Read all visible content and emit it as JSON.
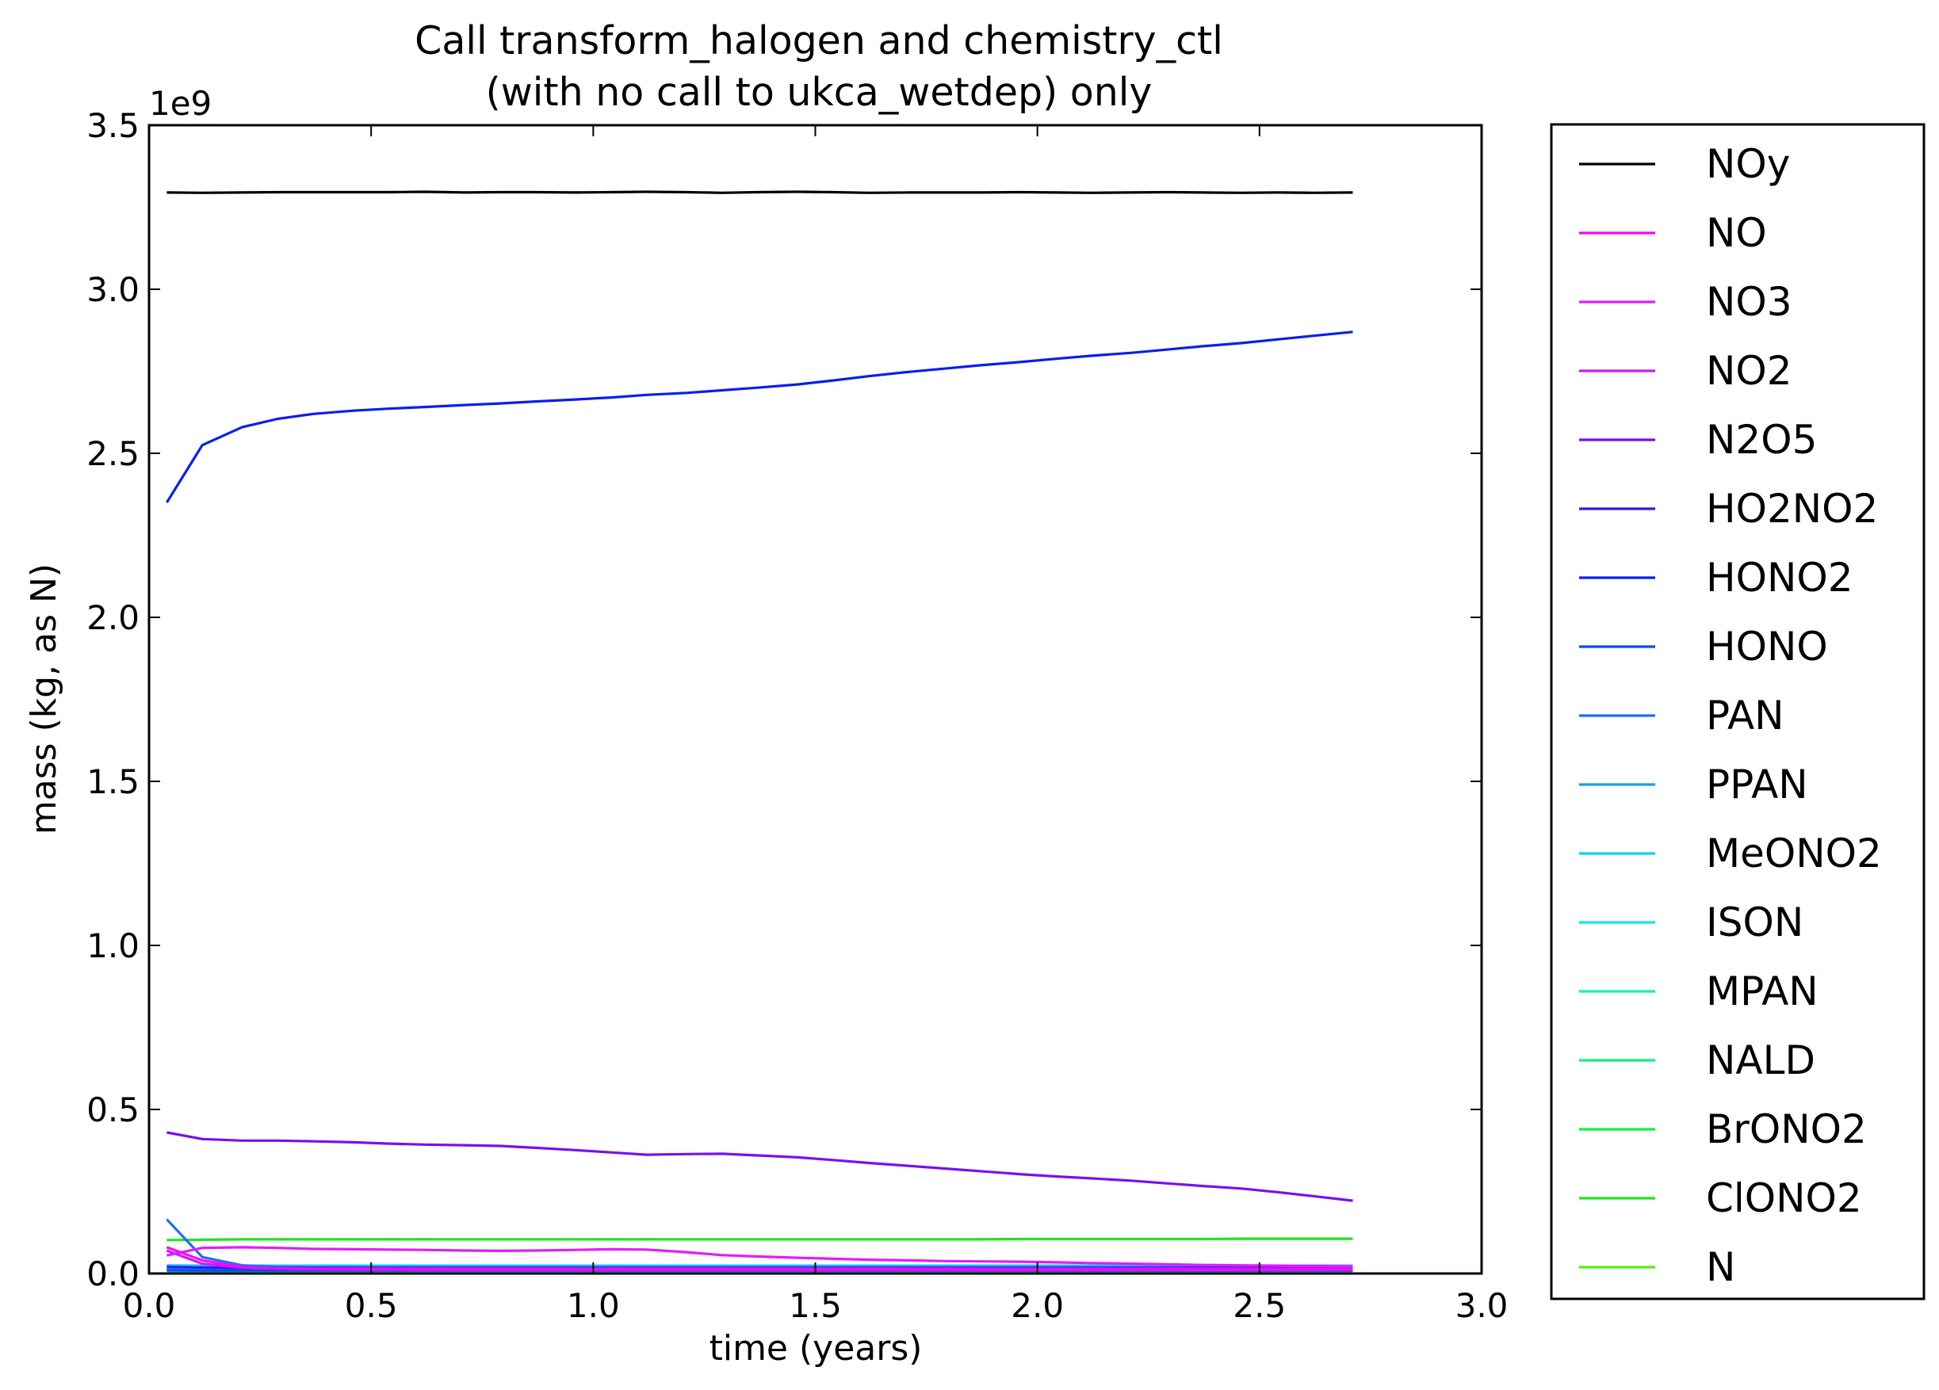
{
  "chart_data": {
    "type": "line",
    "title": "Call transform_halogen and chemistry_ctl\n(with no call to ukca_wetdep) only",
    "title_lines": [
      "Call transform_halogen and chemistry_ctl",
      "(with no call to ukca_wetdep) only"
    ],
    "xlabel": "time (years)",
    "ylabel": "mass (kg, as N)",
    "y_offset_label": "1e9",
    "xlim": [
      0.0,
      3.0
    ],
    "ylim": [
      0.0,
      3.5
    ],
    "x_ticks": [
      0.0,
      0.5,
      1.0,
      1.5,
      2.0,
      2.5,
      3.0
    ],
    "x_tick_labels": [
      "0.0",
      "0.5",
      "1.0",
      "1.5",
      "2.0",
      "2.5",
      "3.0"
    ],
    "y_ticks": [
      0.0,
      0.5,
      1.0,
      1.5,
      2.0,
      2.5,
      3.0,
      3.5
    ],
    "y_tick_labels": [
      "0.0",
      "0.5",
      "1.0",
      "1.5",
      "2.0",
      "2.5",
      "3.0",
      "3.5"
    ],
    "grid": false,
    "legend_position": "outside-right",
    "x": [
      0.04,
      0.12,
      0.21,
      0.29,
      0.37,
      0.46,
      0.54,
      0.62,
      0.71,
      0.79,
      0.87,
      0.96,
      1.04,
      1.12,
      1.21,
      1.29,
      1.37,
      1.46,
      1.54,
      1.62,
      1.71,
      1.79,
      1.87,
      1.96,
      2.04,
      2.12,
      2.21,
      2.29,
      2.37,
      2.46,
      2.54,
      2.62,
      2.71
    ],
    "series": [
      {
        "name": "NOy",
        "color": "#000000",
        "values": [
          3.295,
          3.294,
          3.295,
          3.296,
          3.296,
          3.296,
          3.296,
          3.297,
          3.295,
          3.296,
          3.296,
          3.295,
          3.296,
          3.297,
          3.296,
          3.294,
          3.296,
          3.297,
          3.296,
          3.294,
          3.295,
          3.295,
          3.295,
          3.296,
          3.295,
          3.294,
          3.295,
          3.296,
          3.295,
          3.294,
          3.295,
          3.294,
          3.295
        ]
      },
      {
        "name": "NO",
        "color": "#ff00ff",
        "values": [
          0.08,
          0.04,
          0.02,
          0.015,
          0.013,
          0.012,
          0.012,
          0.011,
          0.011,
          0.011,
          0.011,
          0.011,
          0.011,
          0.011,
          0.011,
          0.011,
          0.011,
          0.011,
          0.011,
          0.011,
          0.011,
          0.011,
          0.011,
          0.011,
          0.011,
          0.011,
          0.011,
          0.011,
          0.011,
          0.011,
          0.011,
          0.011,
          0.011
        ]
      },
      {
        "name": "NO3",
        "color": "#e31cff",
        "values": [
          0.055,
          0.078,
          0.08,
          0.078,
          0.075,
          0.074,
          0.073,
          0.072,
          0.07,
          0.069,
          0.07,
          0.072,
          0.074,
          0.073,
          0.065,
          0.056,
          0.052,
          0.048,
          0.045,
          0.042,
          0.04,
          0.038,
          0.037,
          0.036,
          0.034,
          0.032,
          0.03,
          0.028,
          0.026,
          0.025,
          0.024,
          0.023,
          0.022
        ]
      },
      {
        "name": "NO2",
        "color": "#c01ff0",
        "values": [
          0.07,
          0.03,
          0.018,
          0.016,
          0.015,
          0.015,
          0.015,
          0.015,
          0.015,
          0.015,
          0.015,
          0.015,
          0.015,
          0.015,
          0.015,
          0.015,
          0.015,
          0.015,
          0.015,
          0.015,
          0.015,
          0.015,
          0.015,
          0.015,
          0.015,
          0.015,
          0.015,
          0.015,
          0.015,
          0.015,
          0.015,
          0.015,
          0.015
        ]
      },
      {
        "name": "N2O5",
        "color": "#7a10f0",
        "values": [
          0.43,
          0.41,
          0.405,
          0.405,
          0.403,
          0.4,
          0.396,
          0.393,
          0.391,
          0.389,
          0.383,
          0.376,
          0.369,
          0.362,
          0.364,
          0.365,
          0.36,
          0.354,
          0.346,
          0.337,
          0.328,
          0.32,
          0.312,
          0.303,
          0.296,
          0.29,
          0.283,
          0.275,
          0.267,
          0.259,
          0.248,
          0.236,
          0.222
        ]
      },
      {
        "name": "HO2NO2",
        "color": "#3a14f0",
        "values": [
          0.02,
          0.018,
          0.017,
          0.017,
          0.017,
          0.017,
          0.017,
          0.017,
          0.017,
          0.017,
          0.017,
          0.017,
          0.017,
          0.017,
          0.017,
          0.017,
          0.017,
          0.017,
          0.017,
          0.017,
          0.017,
          0.017,
          0.017,
          0.017,
          0.017,
          0.017,
          0.017,
          0.017,
          0.017,
          0.017,
          0.017,
          0.017,
          0.017
        ]
      },
      {
        "name": "HONO2",
        "color": "#0a1ef0",
        "values": [
          2.35,
          2.525,
          2.58,
          2.605,
          2.62,
          2.63,
          2.636,
          2.641,
          2.647,
          2.652,
          2.658,
          2.664,
          2.67,
          2.678,
          2.684,
          2.692,
          2.7,
          2.71,
          2.722,
          2.735,
          2.748,
          2.758,
          2.768,
          2.778,
          2.788,
          2.797,
          2.806,
          2.816,
          2.826,
          2.836,
          2.847,
          2.858,
          2.87
        ]
      },
      {
        "name": "HONO",
        "color": "#0a48f0",
        "values": [
          0.01,
          0.009,
          0.009,
          0.009,
          0.009,
          0.009,
          0.009,
          0.009,
          0.009,
          0.009,
          0.009,
          0.009,
          0.009,
          0.009,
          0.009,
          0.009,
          0.009,
          0.009,
          0.009,
          0.009,
          0.009,
          0.009,
          0.009,
          0.009,
          0.009,
          0.009,
          0.009,
          0.009,
          0.009,
          0.009,
          0.009,
          0.009,
          0.009
        ]
      },
      {
        "name": "PAN",
        "color": "#1a70f5",
        "values": [
          0.165,
          0.05,
          0.025,
          0.02,
          0.019,
          0.019,
          0.019,
          0.019,
          0.019,
          0.019,
          0.019,
          0.019,
          0.019,
          0.019,
          0.019,
          0.019,
          0.019,
          0.019,
          0.019,
          0.019,
          0.019,
          0.019,
          0.019,
          0.019,
          0.019,
          0.019,
          0.019,
          0.019,
          0.019,
          0.019,
          0.019,
          0.019,
          0.019
        ]
      },
      {
        "name": "PPAN",
        "color": "#1a9cf5",
        "values": [
          0.012,
          0.011,
          0.011,
          0.011,
          0.011,
          0.011,
          0.011,
          0.011,
          0.011,
          0.011,
          0.011,
          0.011,
          0.011,
          0.011,
          0.011,
          0.011,
          0.011,
          0.011,
          0.011,
          0.011,
          0.011,
          0.011,
          0.011,
          0.011,
          0.011,
          0.011,
          0.011,
          0.011,
          0.011,
          0.011,
          0.011,
          0.011,
          0.011
        ]
      },
      {
        "name": "MeONO2",
        "color": "#10cff5",
        "values": [
          0.025,
          0.024,
          0.024,
          0.024,
          0.024,
          0.024,
          0.024,
          0.024,
          0.024,
          0.024,
          0.024,
          0.024,
          0.024,
          0.024,
          0.024,
          0.024,
          0.024,
          0.024,
          0.024,
          0.024,
          0.024,
          0.024,
          0.024,
          0.024,
          0.024,
          0.024,
          0.024,
          0.024,
          0.024,
          0.024,
          0.024,
          0.024,
          0.024
        ]
      },
      {
        "name": "ISON",
        "color": "#10e8ee",
        "values": [
          0.02,
          0.021,
          0.021,
          0.021,
          0.021,
          0.021,
          0.021,
          0.021,
          0.021,
          0.021,
          0.021,
          0.021,
          0.021,
          0.021,
          0.021,
          0.021,
          0.021,
          0.021,
          0.021,
          0.021,
          0.021,
          0.021,
          0.021,
          0.021,
          0.021,
          0.021,
          0.021,
          0.021,
          0.021,
          0.021,
          0.021,
          0.021,
          0.021
        ]
      },
      {
        "name": "MPAN",
        "color": "#14f0c0",
        "values": [
          0.015,
          0.015,
          0.015,
          0.015,
          0.015,
          0.015,
          0.015,
          0.015,
          0.015,
          0.015,
          0.015,
          0.015,
          0.015,
          0.015,
          0.015,
          0.015,
          0.015,
          0.015,
          0.015,
          0.015,
          0.015,
          0.015,
          0.015,
          0.015,
          0.015,
          0.015,
          0.015,
          0.015,
          0.015,
          0.015,
          0.015,
          0.015,
          0.015
        ]
      },
      {
        "name": "NALD",
        "color": "#14f07a",
        "values": [
          0.005,
          0.005,
          0.005,
          0.005,
          0.005,
          0.005,
          0.005,
          0.005,
          0.005,
          0.005,
          0.005,
          0.005,
          0.005,
          0.005,
          0.005,
          0.005,
          0.005,
          0.005,
          0.005,
          0.005,
          0.005,
          0.005,
          0.005,
          0.005,
          0.005,
          0.005,
          0.005,
          0.005,
          0.005,
          0.005,
          0.005,
          0.005,
          0.005
        ]
      },
      {
        "name": "BrONO2",
        "color": "#14f03a",
        "values": [
          0.003,
          0.003,
          0.003,
          0.003,
          0.003,
          0.003,
          0.003,
          0.003,
          0.003,
          0.003,
          0.003,
          0.003,
          0.003,
          0.003,
          0.003,
          0.003,
          0.003,
          0.003,
          0.003,
          0.003,
          0.003,
          0.003,
          0.003,
          0.003,
          0.003,
          0.003,
          0.003,
          0.003,
          0.003,
          0.003,
          0.003,
          0.003,
          0.003
        ]
      },
      {
        "name": "ClONO2",
        "color": "#1ee61e",
        "values": [
          0.102,
          0.103,
          0.104,
          0.104,
          0.104,
          0.104,
          0.104,
          0.104,
          0.104,
          0.104,
          0.104,
          0.104,
          0.104,
          0.104,
          0.104,
          0.104,
          0.104,
          0.104,
          0.104,
          0.104,
          0.104,
          0.104,
          0.104,
          0.105,
          0.105,
          0.105,
          0.105,
          0.105,
          0.105,
          0.106,
          0.106,
          0.106,
          0.106
        ]
      },
      {
        "name": "N",
        "color": "#55f010",
        "values": [
          0.001,
          0.001,
          0.001,
          0.001,
          0.001,
          0.001,
          0.001,
          0.001,
          0.001,
          0.001,
          0.001,
          0.001,
          0.001,
          0.001,
          0.001,
          0.001,
          0.001,
          0.001,
          0.001,
          0.001,
          0.001,
          0.001,
          0.001,
          0.001,
          0.001,
          0.001,
          0.001,
          0.001,
          0.001,
          0.001,
          0.001,
          0.001,
          0.001
        ]
      }
    ]
  }
}
